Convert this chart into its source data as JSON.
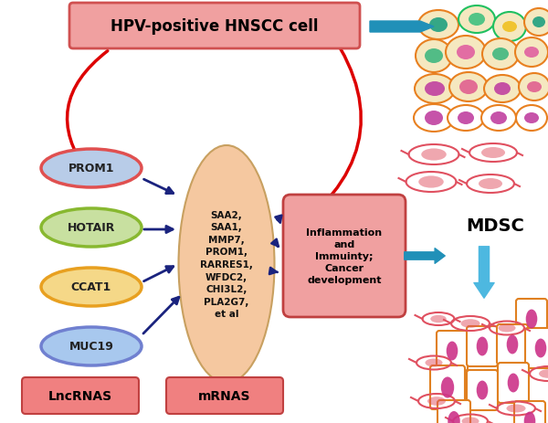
{
  "title": "HPV-positive HNSCC cell",
  "lncrnas_label": "LncRNAS",
  "mrnas_label": "mRNAS",
  "mdsc_label": "MDSC",
  "lncrna_items": [
    "PROM1",
    "HOTAIR",
    "CCAT1",
    "MUC19"
  ],
  "lncrna_colors": [
    "#b8cce8",
    "#c8e0a0",
    "#f5d888",
    "#a8c8ee"
  ],
  "lncrna_edge_colors": [
    "#e05050",
    "#88b830",
    "#e8a020",
    "#7080d0"
  ],
  "mrna_text": "SAA2,\nSAA1,\nMMP7,\nPROM1,\nRARRES1,\nWFDC2,\nCHI3L2,\nPLA2G7,\net al",
  "inflammation_text": "Inflammation\nand\nImmuinty;\nCancer\ndevelopment",
  "background_color": "#ffffff",
  "title_box_color": "#f0a0a0",
  "title_box_edge": "#d05050",
  "mrna_ellipse_color": "#f5c8a0",
  "inflammation_box_color": "#f0a0a0",
  "inflammation_box_edge": "#c04040",
  "lncrnas_box_color": "#f08080",
  "lncrnas_box_edge": "#c04040",
  "mrnas_box_color": "#f08080",
  "mrnas_box_edge": "#c04040",
  "arrow_color_blue": "#1a237e",
  "arrow_color_red": "#dd0000",
  "arrow_color_cyan": "#2090b8"
}
